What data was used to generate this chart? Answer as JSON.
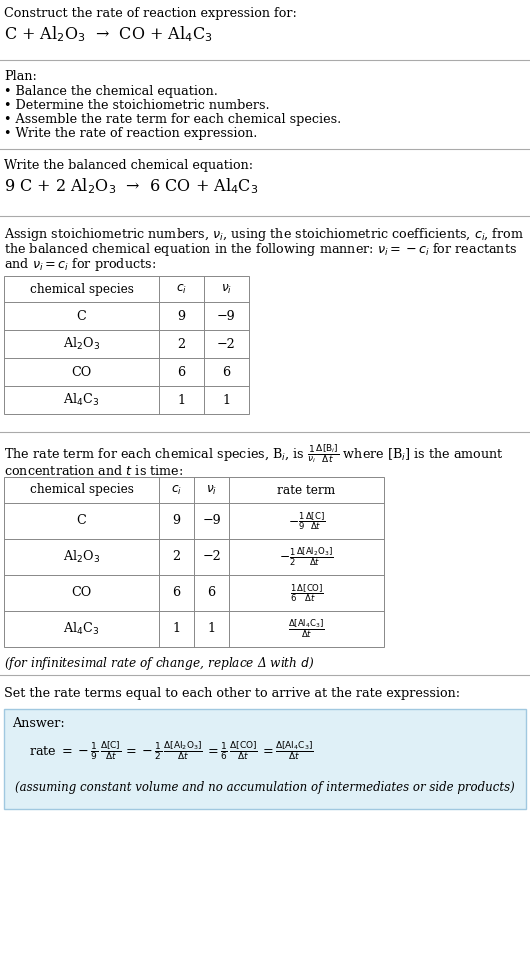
{
  "bg_color": "#ffffff",
  "text_color": "#000000",
  "title_line1": "Construct the rate of reaction expression for:",
  "reaction_unbalanced": "C + Al$_2$O$_3$  →  CO + Al$_4$C$_3$",
  "plan_header": "Plan:",
  "plan_items": [
    "• Balance the chemical equation.",
    "• Determine the stoichiometric numbers.",
    "• Assemble the rate term for each chemical species.",
    "• Write the rate of reaction expression."
  ],
  "section2_header": "Write the balanced chemical equation:",
  "balanced_eq": "9 C + 2 Al$_2$O$_3$  →  6 CO + Al$_4$C$_3$",
  "table1_headers": [
    "chemical species",
    "$c_i$",
    "$\\nu_i$"
  ],
  "table1_rows": [
    [
      "C",
      "9",
      "−9"
    ],
    [
      "Al$_2$O$_3$",
      "2",
      "−2"
    ],
    [
      "CO",
      "6",
      "6"
    ],
    [
      "Al$_4$C$_3$",
      "1",
      "1"
    ]
  ],
  "table2_headers": [
    "chemical species",
    "$c_i$",
    "$\\nu_i$",
    "rate term"
  ],
  "table2_rows_col0": [
    "C",
    "Al$_2$O$_3$",
    "CO",
    "Al$_4$C$_3$"
  ],
  "table2_rows_col1": [
    "9",
    "2",
    "6",
    "1"
  ],
  "table2_rows_col2": [
    "−9",
    "−2",
    "6",
    "1"
  ],
  "table2_rows_col3": [
    "$-\\frac{1}{9}\\frac{\\Delta[\\mathrm{C}]}{\\Delta t}$",
    "$-\\frac{1}{2}\\frac{\\Delta[\\mathrm{Al_2O_3}]}{\\Delta t}$",
    "$\\frac{1}{6}\\frac{\\Delta[\\mathrm{CO}]}{\\Delta t}$",
    "$\\frac{\\Delta[\\mathrm{Al_4C_3}]}{\\Delta t}$"
  ],
  "footnote": "(for infinitesimal rate of change, replace Δ with $d$)",
  "section6_header": "Set the rate terms equal to each other to arrive at the rate expression:",
  "answer_box_color": "#dff0f7",
  "answer_box_border": "#a0c8e0",
  "answer_label": "Answer:",
  "answer_note": "(assuming constant volume and no accumulation of intermediates or side products)"
}
